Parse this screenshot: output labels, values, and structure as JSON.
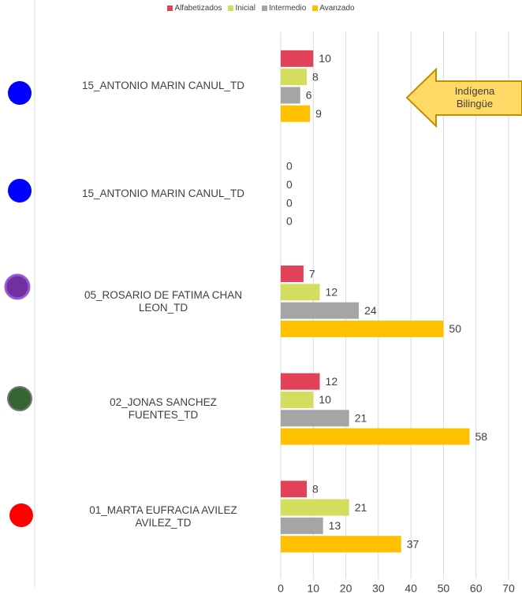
{
  "chart_data": {
    "type": "hbar",
    "categories": [
      "15_ANTONIO MARIN CANUL_TD",
      "15_ANTONIO MARIN CANUL_TD",
      "05_ROSARIO DE FATIMA CHAN\nLEON_TD",
      "02_JONAS SANCHEZ\nFUENTES_TD",
      "01_MARTA EUFRACIA AVILEZ\nAVILEZ_TD"
    ],
    "series": [
      {
        "name": "Alfabetizados",
        "color": "#e2415a",
        "values": [
          10,
          0,
          7,
          12,
          8
        ]
      },
      {
        "name": "Inicial",
        "color": "#d4de5e",
        "values": [
          8,
          0,
          12,
          10,
          21
        ]
      },
      {
        "name": "Intermedio",
        "color": "#a5a5a5",
        "values": [
          6,
          0,
          24,
          21,
          13
        ]
      },
      {
        "name": "Avanzado",
        "color": "#ffc000",
        "values": [
          9,
          0,
          50,
          58,
          37
        ]
      }
    ],
    "xlim": [
      0,
      70
    ],
    "xticks": [
      0,
      10,
      20,
      30,
      40,
      50,
      60,
      70
    ],
    "grid": true,
    "legend": "top",
    "annotation": "Indígena\nBilingüe"
  }
}
